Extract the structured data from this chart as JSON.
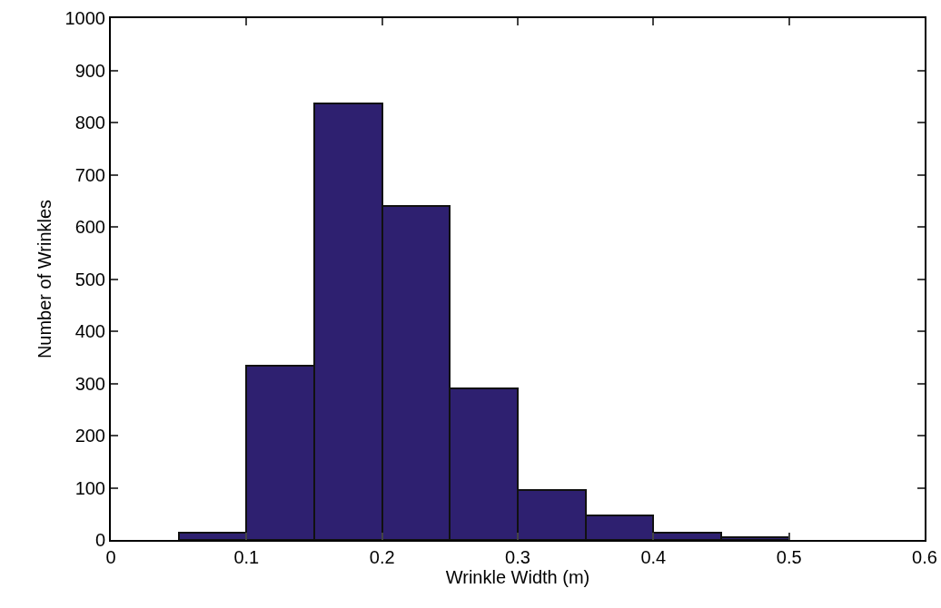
{
  "chart_data": {
    "type": "histogram",
    "xlabel": "Wrinkle Width (m)",
    "ylabel": "Number of Wrinkles",
    "bins": [
      0.05,
      0.1,
      0.15,
      0.2,
      0.25,
      0.3,
      0.35,
      0.4,
      0.45,
      0.5
    ],
    "values": [
      14,
      334,
      837,
      640,
      291,
      95,
      47,
      14,
      6
    ],
    "color": "#2e2070",
    "xlim": [
      0,
      0.6
    ],
    "xticks": [
      0,
      0.1,
      0.2,
      0.3,
      0.4,
      0.5,
      0.6
    ],
    "ylim": [
      0,
      1000
    ],
    "yticks": [
      0,
      100,
      200,
      300,
      400,
      500,
      600,
      700,
      800,
      900,
      1000
    ],
    "grid": false,
    "legend": false
  }
}
